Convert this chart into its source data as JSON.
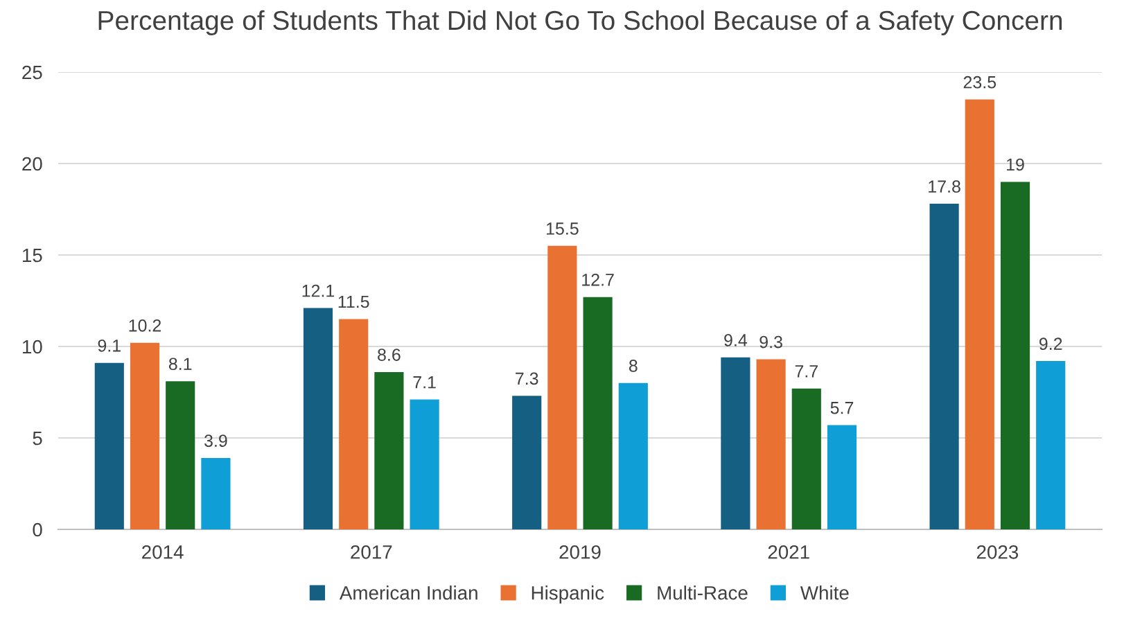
{
  "chart_data": {
    "type": "bar",
    "title": "Percentage of Students That Did Not Go To School Because of a Safety Concern",
    "categories": [
      "2014",
      "2017",
      "2019",
      "2021",
      "2023"
    ],
    "series": [
      {
        "name": "American Indian",
        "color": "#156082",
        "values": [
          9.1,
          12.1,
          7.3,
          9.4,
          17.8
        ]
      },
      {
        "name": "Hispanic",
        "color": "#e97132",
        "values": [
          10.2,
          11.5,
          15.5,
          9.3,
          23.5
        ]
      },
      {
        "name": "Multi-Race",
        "color": "#196b24",
        "values": [
          8.1,
          8.6,
          12.7,
          7.7,
          19
        ]
      },
      {
        "name": "White",
        "color": "#0f9ed5",
        "values": [
          3.9,
          7.1,
          8,
          5.7,
          9.2
        ]
      }
    ],
    "ylim": [
      0,
      25
    ],
    "yticks": [
      0,
      5,
      10,
      15,
      20,
      25
    ],
    "grid": "y",
    "legend": "bottom",
    "data_labels": true
  }
}
